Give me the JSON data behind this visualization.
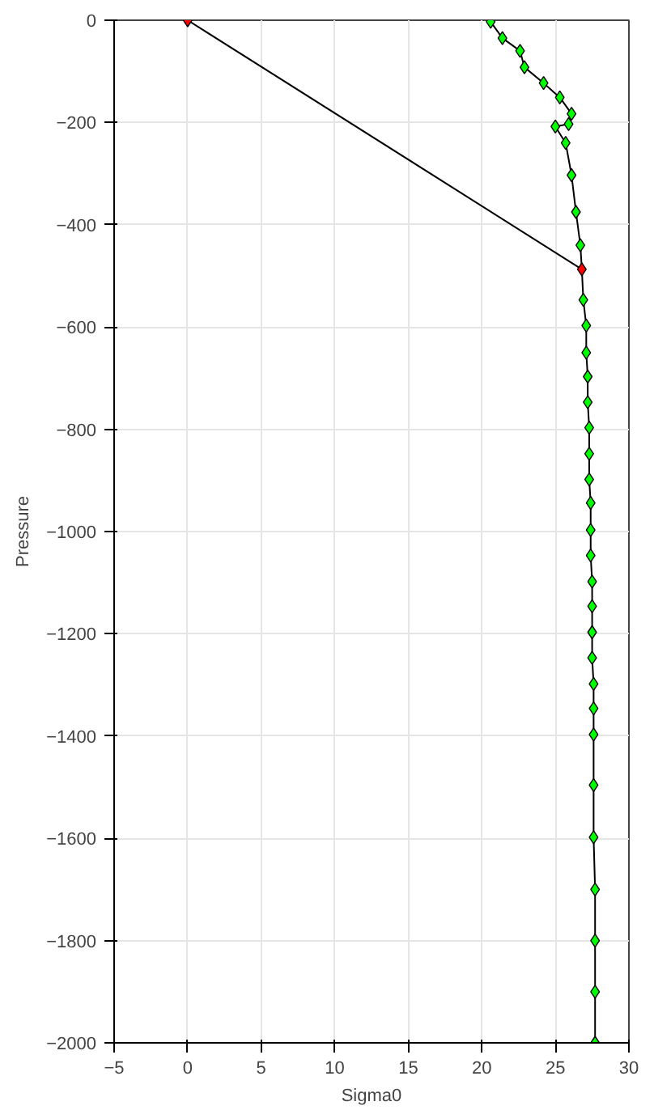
{
  "chart_data": {
    "type": "line",
    "xlabel": "Sigma0",
    "ylabel": "Pressure",
    "xlim": [
      -5,
      30
    ],
    "ylim": [
      -2000,
      0
    ],
    "xticks": [
      -5,
      0,
      5,
      10,
      15,
      20,
      25,
      30
    ],
    "yticks": [
      -2000,
      -1800,
      -1600,
      -1400,
      -1200,
      -1000,
      -800,
      -600,
      -400,
      -200,
      0
    ],
    "grid": true,
    "series": [
      {
        "color": "#000000",
        "marker": "none",
        "x": [
          20.6,
          21.4,
          22.6,
          22.9,
          24.2,
          25.3,
          26.1,
          25.9,
          25.0,
          25.7,
          26.1,
          26.4,
          26.7,
          26.8,
          26.9,
          27.1,
          27.1,
          27.2,
          27.2,
          27.3,
          27.3,
          27.3,
          27.4,
          27.4,
          27.4,
          27.5,
          27.5,
          27.5,
          27.5,
          27.6,
          27.6,
          27.6,
          27.6,
          27.6,
          27.7,
          27.7,
          27.7,
          27.7
        ],
        "values": [
          -3,
          -35,
          -60,
          -92,
          -123,
          -151,
          -183,
          -203,
          -208,
          -240,
          -303,
          -375,
          -440,
          -487,
          -547,
          -597,
          -650,
          -697,
          -747,
          -797,
          -848,
          -898,
          -944,
          -997,
          -1047,
          -1098,
          -1146,
          -1197,
          -1247,
          -1298,
          -1346,
          -1397,
          -1496,
          -1598,
          -1700,
          -1800,
          -1900,
          -2000
        ]
      },
      {
        "type": "scatter",
        "color": "#00ff00",
        "marker": "diamond",
        "x": [
          20.6,
          21.4,
          22.6,
          22.9,
          24.2,
          25.3,
          26.1,
          25.9,
          25.0,
          25.7,
          26.1,
          26.4,
          26.7,
          26.9,
          27.1,
          27.1,
          27.2,
          27.2,
          27.3,
          27.3,
          27.3,
          27.4,
          27.4,
          27.4,
          27.5,
          27.5,
          27.5,
          27.5,
          27.6,
          27.6,
          27.6,
          27.6,
          27.6,
          27.7,
          27.7,
          27.7,
          27.7
        ],
        "values": [
          -3,
          -35,
          -60,
          -92,
          -123,
          -151,
          -183,
          -203,
          -208,
          -240,
          -303,
          -375,
          -440,
          -547,
          -597,
          -650,
          -697,
          -747,
          -797,
          -848,
          -898,
          -944,
          -997,
          -1047,
          -1098,
          -1146,
          -1197,
          -1247,
          -1298,
          -1346,
          -1397,
          -1496,
          -1598,
          -1700,
          -1800,
          -1900,
          -2000
        ]
      },
      {
        "color": "#000000",
        "marker": "none",
        "x": [
          0,
          26.8
        ],
        "values": [
          0,
          -487
        ]
      },
      {
        "type": "scatter",
        "color": "#ff0000",
        "marker": "diamond",
        "x": [
          0,
          26.8
        ],
        "values": [
          0,
          -487
        ]
      }
    ]
  }
}
